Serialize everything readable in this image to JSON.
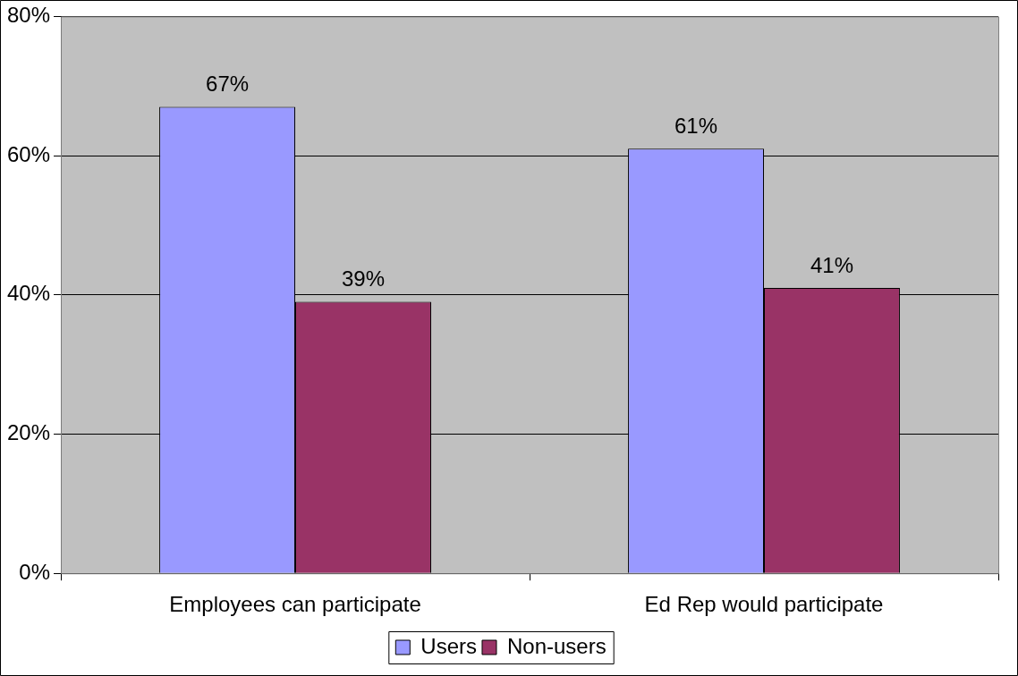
{
  "chart_data": {
    "type": "bar",
    "categories": [
      "Employees can participate",
      "Ed Rep would participate"
    ],
    "series": [
      {
        "name": "Users",
        "color": "#9999ff",
        "values": [
          67,
          61
        ],
        "value_labels": [
          "67%",
          "61%"
        ]
      },
      {
        "name": "Non-users",
        "color": "#993366",
        "values": [
          39,
          41
        ],
        "value_labels": [
          "39%",
          "41%"
        ]
      }
    ],
    "ylim": [
      0,
      80
    ],
    "yticks": [
      {
        "value": 0,
        "label": "0%"
      },
      {
        "value": 20,
        "label": "20%"
      },
      {
        "value": 40,
        "label": "40%"
      },
      {
        "value": 60,
        "label": "60%"
      },
      {
        "value": 80,
        "label": "80%"
      }
    ],
    "grid": "y",
    "legend": "bottom"
  }
}
